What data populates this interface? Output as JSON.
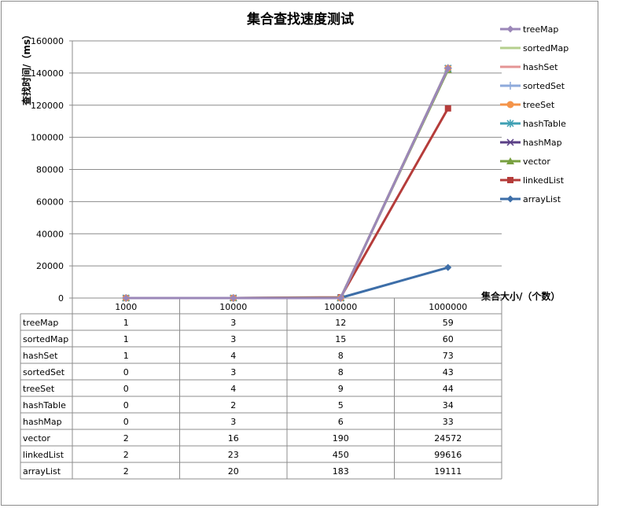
{
  "chart_data": {
    "type": "line",
    "title": "集合查找速度测试",
    "xlabel": "集合大小/（个数）",
    "ylabel": "查找时间/（ms）",
    "categories": [
      "1000",
      "10000",
      "100000",
      "1000000"
    ],
    "ylim": [
      0,
      160000
    ],
    "yticks": [
      0,
      20000,
      40000,
      60000,
      80000,
      100000,
      120000,
      140000,
      160000
    ],
    "grid": true,
    "legend": "right",
    "data_table": true,
    "series": [
      {
        "name": "treeMap",
        "values": [
          1,
          3,
          12,
          59
        ],
        "color": "#9b87b8",
        "marker": "diamond"
      },
      {
        "name": "sortedMap",
        "values": [
          1,
          3,
          15,
          60
        ],
        "color": "#b5cf8e",
        "marker": "none"
      },
      {
        "name": "hashSet",
        "values": [
          1,
          4,
          8,
          73
        ],
        "color": "#e49494",
        "marker": "none"
      },
      {
        "name": "sortedSet",
        "values": [
          0,
          3,
          8,
          43
        ],
        "color": "#8eaadb",
        "marker": "plus"
      },
      {
        "name": "treeSet",
        "values": [
          0,
          4,
          9,
          44
        ],
        "color": "#f4944a",
        "marker": "circle"
      },
      {
        "name": "hashTable",
        "values": [
          0,
          2,
          5,
          34
        ],
        "color": "#3fa0b4",
        "marker": "star"
      },
      {
        "name": "hashMap",
        "values": [
          0,
          3,
          6,
          33
        ],
        "color": "#5a3f86",
        "marker": "x"
      },
      {
        "name": "vector",
        "values": [
          2,
          16,
          190,
          24572
        ],
        "color": "#78a040",
        "marker": "triangle"
      },
      {
        "name": "linkedList",
        "values": [
          2,
          23,
          450,
          99616
        ],
        "color": "#b53c3a",
        "marker": "square"
      },
      {
        "name": "arrayList",
        "values": [
          2,
          20,
          183,
          19111
        ],
        "color": "#3d6ea8",
        "marker": "diamond"
      }
    ],
    "plotted_series_final_values": {
      "treeMap": 143000,
      "sortedMap": 143000,
      "hashSet": 143000,
      "sortedSet": 143000,
      "treeSet": 143000,
      "hashTable": 143000,
      "hashMap": 143000,
      "vector": 142000,
      "linkedList": 118000,
      "arrayList": 19000
    }
  }
}
